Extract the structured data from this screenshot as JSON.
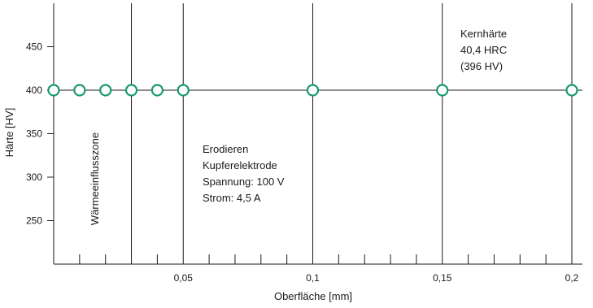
{
  "chart_data": {
    "type": "scatter",
    "xlabel": "Oberfläche [mm]",
    "ylabel": "Härte [HV]",
    "xlim": [
      0,
      0.2
    ],
    "ylim": [
      200,
      500
    ],
    "x_ticks": [
      0.05,
      0.1,
      0.15,
      0.2
    ],
    "x_tick_labels": [
      "0,05",
      "0,1",
      "0,15",
      "0,2"
    ],
    "x_minor_tick_step": 0.01,
    "y_ticks": [
      250,
      300,
      350,
      400,
      450
    ],
    "y_tick_labels": [
      "250",
      "300",
      "350",
      "400",
      "450"
    ],
    "vertical_gridlines_x": [
      0.03,
      0.05,
      0.1,
      0.15,
      0.2
    ],
    "points": [
      {
        "x": 0.0,
        "y": 400
      },
      {
        "x": 0.01,
        "y": 400
      },
      {
        "x": 0.02,
        "y": 400
      },
      {
        "x": 0.03,
        "y": 400
      },
      {
        "x": 0.04,
        "y": 400
      },
      {
        "x": 0.05,
        "y": 400
      },
      {
        "x": 0.1,
        "y": 400
      },
      {
        "x": 0.15,
        "y": 400
      },
      {
        "x": 0.2,
        "y": 400
      }
    ],
    "reference_line_y": 400,
    "colors": {
      "marker": "#1a9a6c",
      "line": "#1a1a1a"
    },
    "annotations": {
      "zone_label": "Wärmeeinflusszone",
      "process_lines": [
        "Erodieren",
        "Kupferelektrode",
        "Spannung: 100 V",
        "Strom: 4,5 A"
      ],
      "core_lines": [
        "Kernhärte",
        "40,4 HRC",
        "(396 HV)"
      ]
    }
  }
}
